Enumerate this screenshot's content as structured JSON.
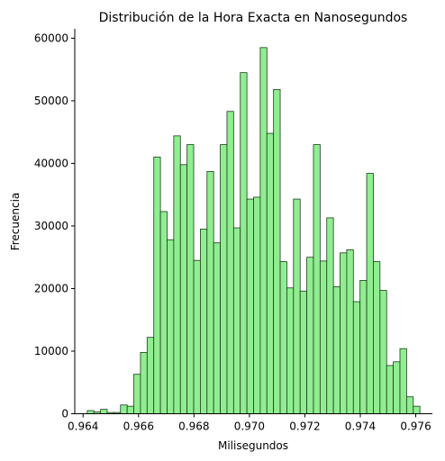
{
  "chart_data": {
    "type": "bar",
    "subtype": "histogram",
    "title": "Distribución de la Hora Exacta en Nanosegundos",
    "xlabel": "Milisegundos",
    "ylabel": "Frecuencia",
    "xlim": [
      0.9637,
      0.9766
    ],
    "ylim": [
      0,
      61500
    ],
    "xticks": [
      0.964,
      0.966,
      0.968,
      0.97,
      0.972,
      0.974,
      0.976
    ],
    "xtick_labels": [
      "0.964",
      "0.966",
      "0.968",
      "0.970",
      "0.972",
      "0.974",
      "0.976"
    ],
    "yticks": [
      0,
      10000,
      20000,
      30000,
      40000,
      50000,
      60000
    ],
    "ytick_labels": [
      "0",
      "10000",
      "20000",
      "30000",
      "40000",
      "50000",
      "60000"
    ],
    "bin_start": 0.96415,
    "bin_width": 0.00024,
    "values": [
      500,
      300,
      700,
      200,
      200,
      1400,
      1200,
      6300,
      9800,
      12200,
      41000,
      32300,
      27800,
      44400,
      39800,
      43000,
      24500,
      29500,
      38700,
      27300,
      43000,
      48300,
      29700,
      54500,
      34300,
      34600,
      58500,
      44800,
      51800,
      24300,
      20100,
      34300,
      19600,
      25000,
      43000,
      24400,
      31300,
      20300,
      25700,
      26200,
      17900,
      21300,
      38400,
      24300,
      19700,
      7700,
      8300,
      10400,
      2700,
      1200
    ],
    "bar_color": "#90ee90",
    "edge_color": "#1b3a1b",
    "grid": false
  }
}
